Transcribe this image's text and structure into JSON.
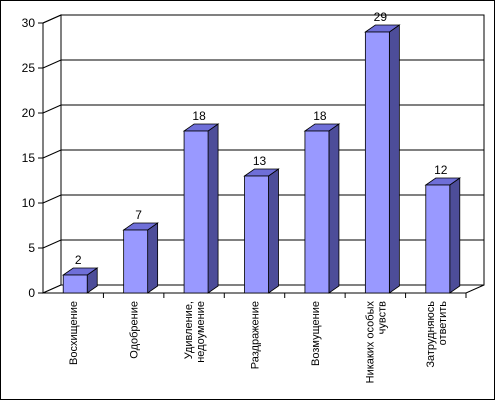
{
  "chart_data": {
    "type": "bar",
    "title": "",
    "xlabel": "",
    "ylabel": "",
    "categories": [
      [
        "Восхищение"
      ],
      [
        "Одобрение"
      ],
      [
        "Удивление,",
        "недоумение"
      ],
      [
        "Раздражение"
      ],
      [
        "Возмущение"
      ],
      [
        "Никаких особых",
        "чувств"
      ],
      [
        "Затрудняюсь",
        "ответить"
      ]
    ],
    "values": [
      2,
      7,
      18,
      13,
      18,
      29,
      12
    ],
    "ylim": [
      0,
      30
    ],
    "yticks": [
      "0",
      "5",
      "10",
      "15",
      "20",
      "25",
      "30"
    ],
    "grid": true,
    "legend": "none",
    "three_d": true,
    "colors": {
      "bar_front": "#9999ff",
      "bar_side": "#4d4d99",
      "bar_top": "#6f6fd8",
      "grid": "#000000",
      "wall": "#ffffff"
    }
  }
}
